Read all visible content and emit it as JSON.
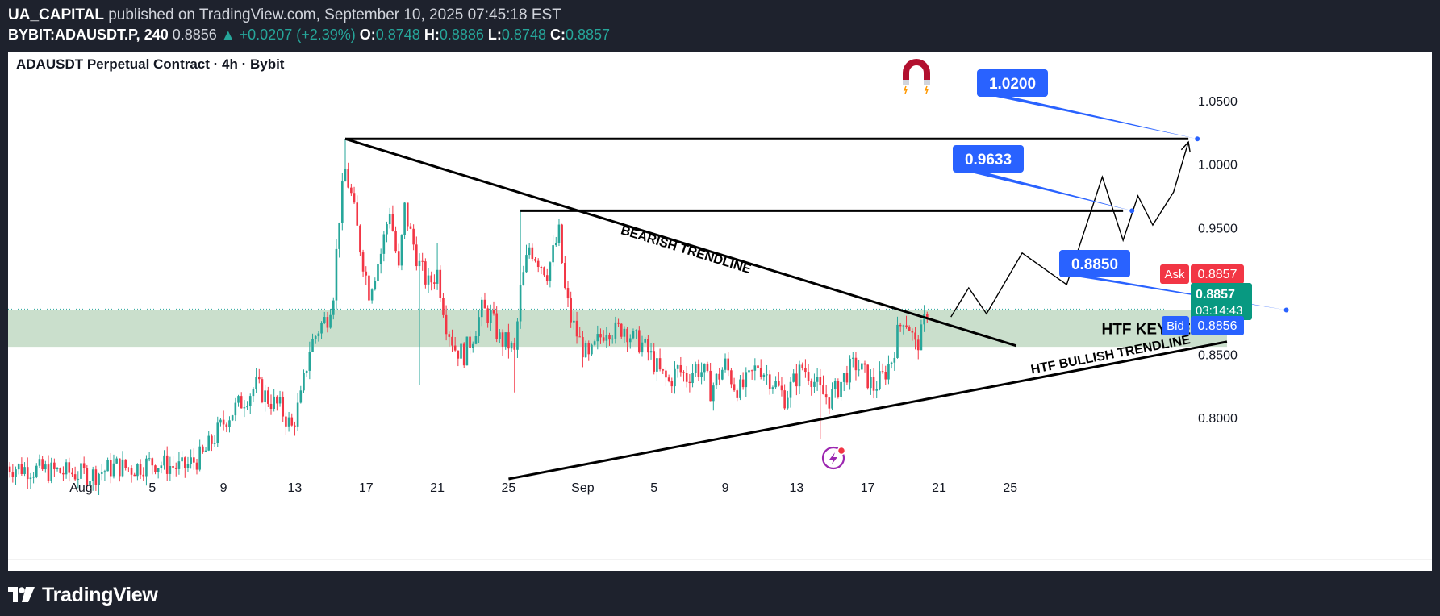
{
  "header": {
    "author": "UA_CAPITAL",
    "published_text": "published on TradingView.com, September 10, 2025 07:45:18 EST",
    "symbol": "BYBIT:ADAUSDT.P, 240",
    "last_price": "0.8856",
    "change": "▲ +0.0207 (+2.39%)",
    "o_label": "O:",
    "o_value": "0.8748",
    "h_label": "H:",
    "h_value": "0.8886",
    "l_label": "L:",
    "l_value": "0.8748",
    "c_label": "C:",
    "c_value": "0.8857"
  },
  "chart_data": {
    "type": "candlestick",
    "title": "ADAUSDT Perpetual Contract · 4h · Bybit",
    "y_axis": {
      "ticks": [
        1.05,
        1.0,
        0.95,
        0.9,
        0.85,
        0.8
      ],
      "tick_labels": [
        "1.0500",
        "1.0000",
        "0.9500",
        "",
        "0.8500",
        "0.8000"
      ],
      "ylim": [
        0.7518,
        1.0888
      ]
    },
    "x_axis": {
      "tick_labels": [
        "Aug",
        "5",
        "9",
        "13",
        "17",
        "21",
        "25",
        "Sep",
        "5",
        "9",
        "13",
        "17",
        "21",
        "25"
      ],
      "x_index": [
        -89,
        -65,
        -41,
        -17,
        7,
        31,
        55,
        80,
        104,
        128,
        152,
        176,
        200,
        224
      ]
    },
    "candle_anchors": [
      {
        "i": -200,
        "p": 0.851
      },
      {
        "i": -195,
        "p": 0.858
      },
      {
        "i": -190,
        "p": 0.846
      },
      {
        "i": -185,
        "p": 0.852
      },
      {
        "i": -180,
        "p": 0.86
      },
      {
        "i": -175,
        "p": 0.842
      },
      {
        "i": -170,
        "p": 0.818
      },
      {
        "i": -165,
        "p": 0.808
      },
      {
        "i": -160,
        "p": 0.795
      },
      {
        "i": -150,
        "p": 0.785
      },
      {
        "i": -142,
        "p": 0.78
      },
      {
        "i": -136,
        "p": 0.775
      },
      {
        "i": -128,
        "p": 0.77
      },
      {
        "i": -115,
        "p": 0.762
      },
      {
        "i": -100,
        "p": 0.758
      },
      {
        "i": -85,
        "p": 0.755
      },
      {
        "i": -77,
        "p": 0.762
      },
      {
        "i": -72,
        "p": 0.76
      },
      {
        "i": -65,
        "p": 0.765
      },
      {
        "i": -55,
        "p": 0.76
      },
      {
        "i": -48,
        "p": 0.77
      },
      {
        "i": -44,
        "p": 0.785
      },
      {
        "i": -40,
        "p": 0.8
      },
      {
        "i": -36,
        "p": 0.81
      },
      {
        "i": -30,
        "p": 0.825
      },
      {
        "i": -26,
        "p": 0.815
      },
      {
        "i": -22,
        "p": 0.808
      },
      {
        "i": -18,
        "p": 0.792
      },
      {
        "i": -15,
        "p": 0.815
      },
      {
        "i": -12,
        "p": 0.855
      },
      {
        "i": -9,
        "p": 0.87
      },
      {
        "i": -6,
        "p": 0.88
      },
      {
        "i": -4,
        "p": 0.9
      },
      {
        "i": -2,
        "p": 0.96
      },
      {
        "i": 0,
        "p": 0.995
      },
      {
        "i": 2,
        "p": 0.975
      },
      {
        "i": 5,
        "p": 0.935
      },
      {
        "i": 8,
        "p": 0.9
      },
      {
        "i": 12,
        "p": 0.93
      },
      {
        "i": 15,
        "p": 0.965
      },
      {
        "i": 18,
        "p": 0.915
      },
      {
        "i": 20,
        "p": 0.965
      },
      {
        "i": 22,
        "p": 0.945
      },
      {
        "i": 25,
        "p": 0.92
      },
      {
        "i": 28,
        "p": 0.905
      },
      {
        "i": 31,
        "p": 0.915
      },
      {
        "i": 34,
        "p": 0.875
      },
      {
        "i": 37,
        "p": 0.855
      },
      {
        "i": 40,
        "p": 0.85
      },
      {
        "i": 43,
        "p": 0.865
      },
      {
        "i": 46,
        "p": 0.885
      },
      {
        "i": 49,
        "p": 0.88
      },
      {
        "i": 52,
        "p": 0.862
      },
      {
        "i": 55,
        "p": 0.858
      },
      {
        "i": 57,
        "p": 0.85
      },
      {
        "i": 59,
        "p": 0.9
      },
      {
        "i": 62,
        "p": 0.935
      },
      {
        "i": 65,
        "p": 0.925
      },
      {
        "i": 68,
        "p": 0.915
      },
      {
        "i": 70,
        "p": 0.93
      },
      {
        "i": 72,
        "p": 0.945
      },
      {
        "i": 74,
        "p": 0.9
      },
      {
        "i": 76,
        "p": 0.878
      },
      {
        "i": 79,
        "p": 0.86
      },
      {
        "i": 82,
        "p": 0.845
      },
      {
        "i": 85,
        "p": 0.86
      },
      {
        "i": 88,
        "p": 0.872
      },
      {
        "i": 91,
        "p": 0.868
      },
      {
        "i": 94,
        "p": 0.872
      },
      {
        "i": 97,
        "p": 0.862
      },
      {
        "i": 100,
        "p": 0.858
      },
      {
        "i": 103,
        "p": 0.848
      },
      {
        "i": 106,
        "p": 0.835
      },
      {
        "i": 109,
        "p": 0.828
      },
      {
        "i": 112,
        "p": 0.838
      },
      {
        "i": 115,
        "p": 0.832
      },
      {
        "i": 118,
        "p": 0.84
      },
      {
        "i": 121,
        "p": 0.835
      },
      {
        "i": 123,
        "p": 0.822
      },
      {
        "i": 125,
        "p": 0.83
      },
      {
        "i": 128,
        "p": 0.842
      },
      {
        "i": 131,
        "p": 0.826
      },
      {
        "i": 133,
        "p": 0.822
      },
      {
        "i": 136,
        "p": 0.83
      },
      {
        "i": 139,
        "p": 0.842
      },
      {
        "i": 142,
        "p": 0.834
      },
      {
        "i": 145,
        "p": 0.826
      },
      {
        "i": 148,
        "p": 0.816
      },
      {
        "i": 151,
        "p": 0.828
      },
      {
        "i": 154,
        "p": 0.84
      },
      {
        "i": 157,
        "p": 0.833
      },
      {
        "i": 160,
        "p": 0.82
      },
      {
        "i": 163,
        "p": 0.815
      },
      {
        "i": 166,
        "p": 0.824
      },
      {
        "i": 169,
        "p": 0.836
      },
      {
        "i": 172,
        "p": 0.842
      },
      {
        "i": 175,
        "p": 0.834
      },
      {
        "i": 178,
        "p": 0.824
      },
      {
        "i": 181,
        "p": 0.832
      },
      {
        "i": 184,
        "p": 0.846
      },
      {
        "i": 186,
        "p": 0.866
      },
      {
        "i": 188,
        "p": 0.88
      },
      {
        "i": 190,
        "p": 0.872
      },
      {
        "i": 192,
        "p": 0.856
      },
      {
        "i": 194,
        "p": 0.865
      },
      {
        "i": 196,
        "p": 0.8856
      }
    ],
    "spikes": [
      {
        "i": 0,
        "hi": 1.02,
        "lo": null
      },
      {
        "i": 25,
        "hi": null,
        "lo": 0.826
      },
      {
        "i": 31,
        "hi": 0.938,
        "lo": null
      },
      {
        "i": 57,
        "hi": null,
        "lo": 0.82
      },
      {
        "i": 59,
        "hi": 0.964,
        "lo": null
      },
      {
        "i": 160,
        "hi": null,
        "lo": 0.783
      },
      {
        "i": -159,
        "hi": null,
        "lo": 0.758
      }
    ],
    "key_zone": {
      "label": "HTF KEY LEVEL",
      "top": 0.885,
      "bottom": 0.856,
      "color": "#c5dcc8"
    },
    "levels": [
      {
        "label": "1.0200",
        "price": 1.02
      },
      {
        "label": "0.9633",
        "price": 0.9633
      },
      {
        "label": "0.8850",
        "price": 0.885
      }
    ],
    "trendlines": [
      {
        "label": "BEARISH TRENDLINE",
        "from": [
          0,
          1.02
        ],
        "to": [
          226,
          0.8568
        ]
      },
      {
        "label": "HTF BULLISH TRENDLINE",
        "from": [
          55,
          0.7518
        ],
        "to": [
          297,
          0.86
        ]
      }
    ],
    "projection_path": [
      [
        204,
        0.8795
      ],
      [
        210,
        0.9025
      ],
      [
        216,
        0.882
      ],
      [
        228,
        0.93
      ],
      [
        243,
        0.905
      ],
      [
        255,
        0.99
      ],
      [
        262,
        0.94
      ],
      [
        267,
        0.975
      ],
      [
        272,
        0.952
      ],
      [
        279,
        0.978
      ],
      [
        284,
        1.0175
      ]
    ],
    "last_price_line": 0.8857,
    "price_labels": {
      "ask_label": "Ask",
      "ask_value": "0.8857",
      "last_value": "0.8857",
      "countdown": "03:14:43",
      "bid_label": "Bid",
      "bid_value": "0.8856"
    },
    "colors": {
      "up": "#26a69a",
      "down": "#f23645",
      "accent": "#2962ff",
      "zone": "#c5dcc8"
    }
  },
  "icons": [
    "magnet-icon",
    "lightning-icon"
  ],
  "footer": {
    "brand": "TradingView"
  }
}
